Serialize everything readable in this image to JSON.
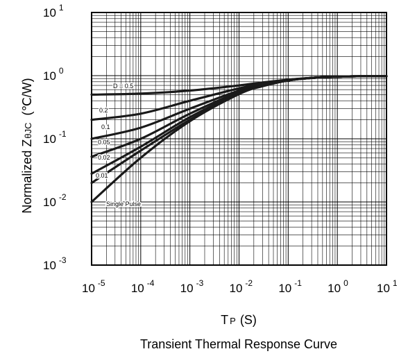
{
  "chart_data": {
    "type": "line",
    "title": "",
    "caption": "Transient Thermal Response Curve",
    "xlabel": {
      "main": "T",
      "sub": "P",
      "unit": "(S)"
    },
    "ylabel": {
      "main": "Normalized Z",
      "sub": "θJC",
      "unit": "(℃/W)"
    },
    "x_scale": "log",
    "y_scale": "log",
    "xlim": [
      1e-05,
      10
    ],
    "ylim": [
      0.001,
      10
    ],
    "grid": true,
    "x_ticks": [
      {
        "base": "10",
        "exp": "-5",
        "value": 1e-05
      },
      {
        "base": "10",
        "exp": "-4",
        "value": 0.0001
      },
      {
        "base": "10",
        "exp": "-3",
        "value": 0.001
      },
      {
        "base": "10",
        "exp": "-2",
        "value": 0.01
      },
      {
        "base": "10",
        "exp": "-1",
        "value": 0.1
      },
      {
        "base": "10",
        "exp": "0",
        "value": 1
      },
      {
        "base": "10",
        "exp": "1",
        "value": 10
      }
    ],
    "y_ticks": [
      {
        "base": "10",
        "exp": "-3",
        "value": 0.001
      },
      {
        "base": "10",
        "exp": "-2",
        "value": 0.01
      },
      {
        "base": "10",
        "exp": "-1",
        "value": 0.1
      },
      {
        "base": "10",
        "exp": "0",
        "value": 1
      },
      {
        "base": "10",
        "exp": "1",
        "value": 10
      }
    ],
    "series": [
      {
        "name": "D = 0.5",
        "x": [
          1e-05,
          0.0001,
          0.001,
          0.01,
          0.03,
          0.1,
          0.3,
          1,
          3,
          10
        ],
        "y": [
          0.5,
          0.52,
          0.58,
          0.7,
          0.78,
          0.86,
          0.92,
          0.96,
          0.98,
          0.98
        ]
      },
      {
        "name": "0.2",
        "x": [
          1e-05,
          0.0001,
          0.001,
          0.01,
          0.03,
          0.1,
          0.3,
          1,
          3,
          10
        ],
        "y": [
          0.2,
          0.25,
          0.4,
          0.63,
          0.75,
          0.86,
          0.92,
          0.96,
          0.98,
          0.98
        ]
      },
      {
        "name": "0.1",
        "x": [
          1e-05,
          0.0001,
          0.001,
          0.01,
          0.03,
          0.1,
          0.3,
          1,
          3,
          10
        ],
        "y": [
          0.1,
          0.15,
          0.3,
          0.58,
          0.72,
          0.85,
          0.92,
          0.96,
          0.98,
          0.98
        ]
      },
      {
        "name": "0.05",
        "x": [
          1e-05,
          0.0001,
          0.001,
          0.01,
          0.03,
          0.1,
          0.3,
          1,
          3,
          10
        ],
        "y": [
          0.052,
          0.1,
          0.25,
          0.55,
          0.7,
          0.84,
          0.92,
          0.96,
          0.98,
          0.98
        ]
      },
      {
        "name": "0.02",
        "x": [
          1e-05,
          0.0001,
          0.001,
          0.01,
          0.03,
          0.1,
          0.3,
          1,
          3,
          10
        ],
        "y": [
          0.028,
          0.075,
          0.22,
          0.53,
          0.69,
          0.84,
          0.92,
          0.96,
          0.98,
          0.98
        ]
      },
      {
        "name": "0.01",
        "x": [
          1e-05,
          0.0001,
          0.001,
          0.01,
          0.03,
          0.1,
          0.3,
          1,
          3,
          10
        ],
        "y": [
          0.02,
          0.065,
          0.2,
          0.52,
          0.68,
          0.84,
          0.92,
          0.96,
          0.98,
          0.98
        ]
      },
      {
        "name": "Single Pulse",
        "x": [
          1e-05,
          0.0001,
          0.001,
          0.01,
          0.03,
          0.1,
          0.3,
          1,
          3,
          10
        ],
        "y": [
          0.01,
          0.05,
          0.19,
          0.51,
          0.68,
          0.84,
          0.92,
          0.96,
          0.98,
          0.98
        ]
      }
    ],
    "colors": {
      "curve": "#1a1a1a",
      "grid": "#000000",
      "background": "#ffffff"
    }
  }
}
